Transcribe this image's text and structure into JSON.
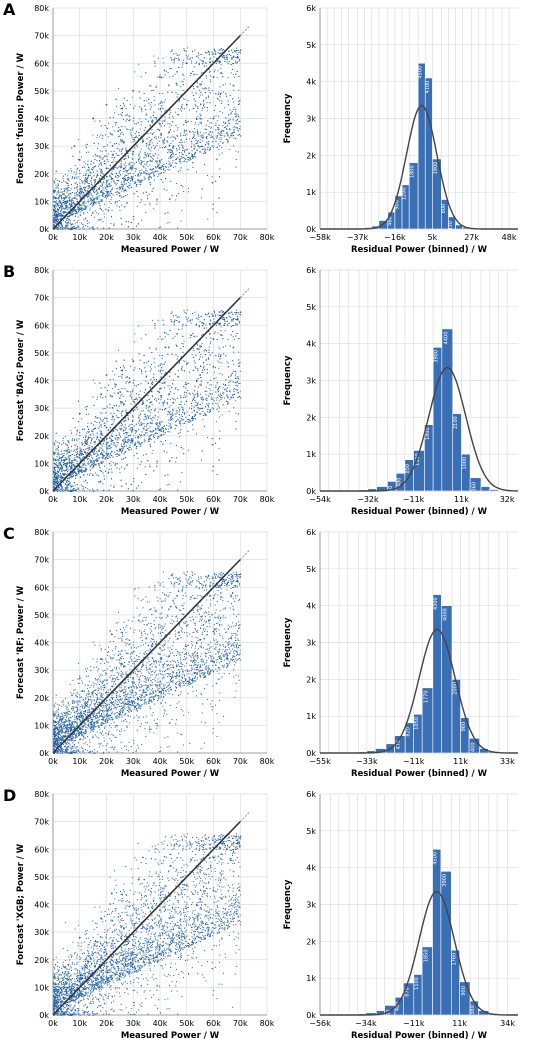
{
  "panels": [
    {
      "letter": "A",
      "scatter": {
        "ylabel": "Forecast 'fusion; Power / W",
        "xlabel": "Measured Power / W",
        "x_ticks": [
          "0k",
          "10k",
          "20k",
          "30k",
          "40k",
          "50k",
          "60k",
          "70k",
          "80k"
        ],
        "y_ticks": [
          "0k",
          "10k",
          "20k",
          "30k",
          "40k",
          "50k",
          "60k",
          "70k",
          "80k"
        ]
      },
      "hist": {
        "ylabel": "Frequency",
        "xlabel": "Residual Power (binned) / W",
        "x_ticks": [
          "−58k",
          "−37k",
          "−16k",
          "5k",
          "27k",
          "48k"
        ],
        "y_ticks": [
          "0k",
          "1k",
          "2k",
          "3k",
          "4k",
          "5k",
          "6k"
        ]
      }
    },
    {
      "letter": "B",
      "scatter": {
        "ylabel": "Forecast 'BAG; Power / W",
        "xlabel": "Measured Power / W",
        "x_ticks": [
          "0k",
          "10k",
          "20k",
          "30k",
          "40k",
          "50k",
          "60k",
          "70k",
          "80k"
        ],
        "y_ticks": [
          "0k",
          "10k",
          "20k",
          "30k",
          "40k",
          "50k",
          "60k",
          "70k",
          "80k"
        ]
      },
      "hist": {
        "ylabel": "Frequency",
        "xlabel": "Residual Power (binned) / W",
        "x_ticks": [
          "−54k",
          "−32k",
          "−11k",
          "11k",
          "32k"
        ],
        "y_ticks": [
          "0k",
          "1k",
          "2k",
          "3k",
          "4k",
          "5k",
          "6k"
        ]
      }
    },
    {
      "letter": "C",
      "scatter": {
        "ylabel": "Forecast 'RF; Power / W",
        "xlabel": "Measured Power / W",
        "x_ticks": [
          "0k",
          "10k",
          "20k",
          "30k",
          "40k",
          "50k",
          "60k",
          "70k",
          "80k"
        ],
        "y_ticks": [
          "0k",
          "10k",
          "20k",
          "30k",
          "40k",
          "50k",
          "60k",
          "70k",
          "80k"
        ]
      },
      "hist": {
        "ylabel": "Frequency",
        "xlabel": "Residual Power (binned) / W",
        "x_ticks": [
          "−55k",
          "−33k",
          "−11k",
          "11k",
          "33k"
        ],
        "y_ticks": [
          "0k",
          "1k",
          "2k",
          "3k",
          "4k",
          "5k",
          "6k"
        ]
      }
    },
    {
      "letter": "D",
      "scatter": {
        "ylabel": "Forecast 'XGB; Power / W",
        "xlabel": "Measured Power / W",
        "x_ticks": [
          "0k",
          "10k",
          "20k",
          "30k",
          "40k",
          "50k",
          "60k",
          "70k",
          "80k"
        ],
        "y_ticks": [
          "0k",
          "10k",
          "20k",
          "30k",
          "40k",
          "50k",
          "60k",
          "70k",
          "80k"
        ]
      },
      "hist": {
        "ylabel": "Frequency",
        "xlabel": "Residual Power (binned) / W",
        "x_ticks": [
          "−56k",
          "−34k",
          "−11k",
          "11k",
          "34k"
        ],
        "y_ticks": [
          "0k",
          "1k",
          "2k",
          "3k",
          "4k",
          "5k",
          "6k"
        ]
      }
    }
  ],
  "colors": {
    "points": "#1f5fa8",
    "bars": "#3a6fb5",
    "bar_edge": "#ffffff",
    "diagonal": "#333333",
    "fit_curve": "#444444",
    "grid": "#dddddd"
  },
  "chart_data": [
    {
      "type": "scatter",
      "panel": "A",
      "xlabel": "Measured Power / W",
      "ylabel": "Forecast 'fusion; Power / W",
      "xlim": [
        0,
        80000
      ],
      "ylim": [
        0,
        80000
      ],
      "reference_line": "y = x",
      "points": [
        [
          5000,
          8000
        ],
        [
          12000,
          15000
        ],
        [
          20000,
          22000
        ],
        [
          30000,
          28000
        ],
        [
          40000,
          38000
        ],
        [
          50000,
          45000
        ],
        [
          60000,
          55000
        ],
        [
          65000,
          62000
        ],
        [
          8000,
          30000
        ],
        [
          15000,
          40000
        ],
        [
          25000,
          12000
        ],
        [
          35000,
          20000
        ],
        [
          45000,
          30000
        ],
        [
          55000,
          40000
        ],
        [
          20000,
          45000
        ],
        [
          30000,
          50000
        ],
        [
          10000,
          25000
        ],
        [
          40000,
          55000
        ],
        [
          50000,
          60000
        ],
        [
          60000,
          40000
        ]
      ],
      "grid": true
    },
    {
      "type": "bar",
      "panel": "A",
      "xlabel": "Residual Power (binned) / W",
      "ylabel": "Frequency",
      "ylim": [
        0,
        6000
      ],
      "x_ticks": [
        "−58k",
        "−37k",
        "−16k",
        "5k",
        "27k",
        "48k"
      ],
      "bin_edges_k": [
        -58,
        -54,
        -50,
        -46,
        -42,
        -37,
        -33,
        -29,
        -25,
        -20,
        -16,
        -12,
        -8,
        -3,
        1,
        5,
        10,
        14,
        18,
        22,
        27,
        31,
        35,
        39,
        44,
        48
      ],
      "values": [
        5,
        8,
        10,
        12,
        15,
        25,
        40,
        80,
        230,
        460,
        900,
        1200,
        1800,
        4500,
        4100,
        1900,
        800,
        330,
        110,
        45,
        20,
        10,
        6,
        4,
        3
      ],
      "normal_fit_peak": 3350,
      "grid": true
    },
    {
      "type": "scatter",
      "panel": "B",
      "xlabel": "Measured Power / W",
      "ylabel": "Forecast 'BAG; Power / W",
      "xlim": [
        0,
        80000
      ],
      "ylim": [
        0,
        80000
      ],
      "reference_line": "y = x",
      "points": [
        [
          5000,
          9000
        ],
        [
          12000,
          14000
        ],
        [
          20000,
          23000
        ],
        [
          30000,
          29000
        ],
        [
          40000,
          37000
        ],
        [
          50000,
          46000
        ],
        [
          60000,
          55000
        ],
        [
          64000,
          60000
        ],
        [
          10000,
          28000
        ],
        [
          18000,
          35000
        ],
        [
          25000,
          15000
        ],
        [
          35000,
          22000
        ],
        [
          45000,
          32000
        ],
        [
          55000,
          42000
        ],
        [
          20000,
          42000
        ],
        [
          30000,
          47000
        ],
        [
          42000,
          52000
        ],
        [
          60000,
          45000
        ]
      ],
      "grid": true
    },
    {
      "type": "bar",
      "panel": "B",
      "xlabel": "Residual Power (binned) / W",
      "ylabel": "Frequency",
      "ylim": [
        0,
        6000
      ],
      "x_ticks": [
        "−54k",
        "−32k",
        "−11k",
        "11k",
        "32k"
      ],
      "bin_edges_k": [
        -54,
        -50,
        -45,
        -41,
        -36,
        -32,
        -28,
        -23,
        -19,
        -15,
        -11,
        -6,
        -2,
        2,
        7,
        11,
        15,
        20,
        24,
        28,
        32
      ],
      "values": [
        4,
        6,
        10,
        18,
        30,
        60,
        120,
        260,
        480,
        850,
        1100,
        1800,
        3900,
        4400,
        2100,
        1000,
        360,
        120,
        40,
        12
      ],
      "normal_fit_peak": 3350,
      "grid": true
    },
    {
      "type": "scatter",
      "panel": "C",
      "xlabel": "Measured Power / W",
      "ylabel": "Forecast 'RF; Power / W",
      "xlim": [
        0,
        80000
      ],
      "ylim": [
        0,
        80000
      ],
      "reference_line": "y = x",
      "points": [
        [
          5000,
          9000
        ],
        [
          12000,
          15000
        ],
        [
          20000,
          22000
        ],
        [
          30000,
          29000
        ],
        [
          40000,
          38000
        ],
        [
          50000,
          46000
        ],
        [
          60000,
          56000
        ],
        [
          65000,
          61000
        ],
        [
          10000,
          27000
        ],
        [
          18000,
          34000
        ],
        [
          25000,
          14000
        ],
        [
          35000,
          21000
        ],
        [
          45000,
          31000
        ],
        [
          55000,
          41000
        ],
        [
          22000,
          43000
        ],
        [
          32000,
          48000
        ],
        [
          44000,
          53000
        ],
        [
          60000,
          44000
        ]
      ],
      "grid": true
    },
    {
      "type": "bar",
      "panel": "C",
      "xlabel": "Residual Power (binned) / W",
      "ylabel": "Frequency",
      "ylim": [
        0,
        6000
      ],
      "x_ticks": [
        "−55k",
        "−33k",
        "−11k",
        "11k",
        "33k"
      ],
      "bin_edges_k": [
        -55,
        -51,
        -46,
        -42,
        -37,
        -33,
        -29,
        -24,
        -20,
        -15,
        -11,
        -7,
        -2,
        2,
        7,
        11,
        15,
        20,
        24,
        29,
        33
      ],
      "values": [
        4,
        6,
        10,
        18,
        30,
        60,
        120,
        250,
        470,
        820,
        1050,
        1770,
        4300,
        4000,
        2000,
        960,
        400,
        120,
        40,
        12
      ],
      "normal_fit_peak": 3350,
      "grid": true
    },
    {
      "type": "scatter",
      "panel": "D",
      "xlabel": "Measured Power / W",
      "ylabel": "Forecast 'XGB; Power / W",
      "xlim": [
        0,
        80000
      ],
      "ylim": [
        0,
        80000
      ],
      "reference_line": "y = x",
      "points": [
        [
          5000,
          9000
        ],
        [
          12000,
          15000
        ],
        [
          20000,
          22000
        ],
        [
          30000,
          29000
        ],
        [
          40000,
          38000
        ],
        [
          50000,
          47000
        ],
        [
          60000,
          57000
        ],
        [
          65000,
          60000
        ],
        [
          10000,
          28000
        ],
        [
          18000,
          35000
        ],
        [
          25000,
          14000
        ],
        [
          35000,
          21000
        ],
        [
          45000,
          31000
        ],
        [
          55000,
          42000
        ],
        [
          22000,
          44000
        ],
        [
          32000,
          49000
        ],
        [
          44000,
          54000
        ],
        [
          60000,
          45000
        ]
      ],
      "grid": true
    },
    {
      "type": "bar",
      "panel": "D",
      "xlabel": "Residual Power (binned) / W",
      "ylabel": "Frequency",
      "ylim": [
        0,
        6000
      ],
      "x_ticks": [
        "−56k",
        "−34k",
        "−11k",
        "11k",
        "34k"
      ],
      "bin_edges_k": [
        -56,
        -51,
        -47,
        -42,
        -38,
        -34,
        -29,
        -25,
        -20,
        -16,
        -11,
        -7,
        -2,
        2,
        7,
        11,
        16,
        20,
        25,
        29,
        34
      ],
      "values": [
        4,
        6,
        10,
        18,
        30,
        60,
        120,
        260,
        480,
        870,
        1100,
        1850,
        4500,
        3900,
        1760,
        900,
        380,
        120,
        40,
        12
      ],
      "normal_fit_peak": 3350,
      "grid": true
    }
  ]
}
